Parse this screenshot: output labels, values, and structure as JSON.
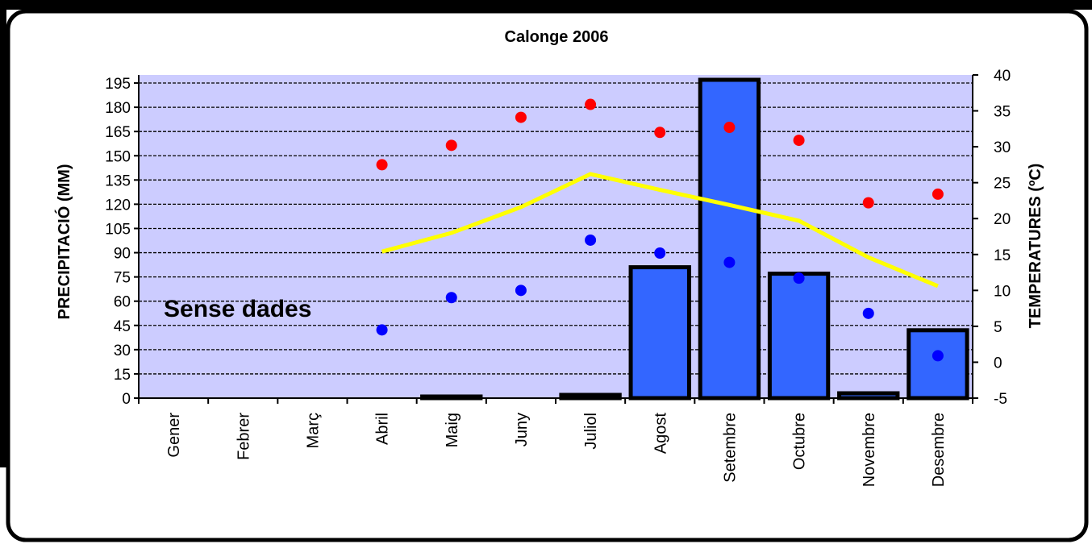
{
  "chart_data": {
    "type": "bar-dot-line",
    "title": "Calonge 2006",
    "y_label": "PRECIPITACIÓ (MM)",
    "y2_label": "TEMPERATURES (ºC)",
    "annotation": "Sense dades",
    "categories": [
      "Gener",
      "Febrer",
      "Març",
      "Abril",
      "Maig",
      "Juny",
      "Juliol",
      "Agost",
      "Setembre",
      "Octubre",
      "Novembre",
      "Desembre"
    ],
    "ylim": [
      0,
      200
    ],
    "yticks": [
      0,
      15,
      30,
      45,
      60,
      75,
      90,
      105,
      120,
      135,
      150,
      165,
      180,
      195
    ],
    "y2lim": [
      -5,
      40
    ],
    "y2ticks": [
      -5,
      0,
      5,
      10,
      15,
      20,
      25,
      30,
      35,
      40
    ],
    "grid": true,
    "background": "#ccccff",
    "series": [
      {
        "kind": "bar",
        "axis": "y",
        "color": "#3366ff",
        "values": [
          null,
          null,
          null,
          0,
          1,
          0,
          2,
          81,
          197,
          77,
          3,
          42
        ]
      },
      {
        "kind": "dot",
        "axis": "y2",
        "color": "#ff0000",
        "values": [
          null,
          null,
          null,
          27.5,
          30.2,
          34.1,
          35.9,
          32.0,
          32.7,
          30.9,
          22.2,
          23.4
        ]
      },
      {
        "kind": "dot",
        "axis": "y2",
        "color": "#0000ff",
        "values": [
          null,
          null,
          null,
          4.5,
          9.0,
          10.0,
          17.0,
          15.2,
          13.9,
          11.7,
          6.8,
          0.9
        ]
      },
      {
        "kind": "line",
        "axis": "y2",
        "color": "#ffff00",
        "values": [
          null,
          null,
          null,
          15.4,
          18.0,
          21.6,
          26.2,
          24.0,
          21.9,
          19.7,
          14.6,
          10.6
        ]
      }
    ]
  }
}
